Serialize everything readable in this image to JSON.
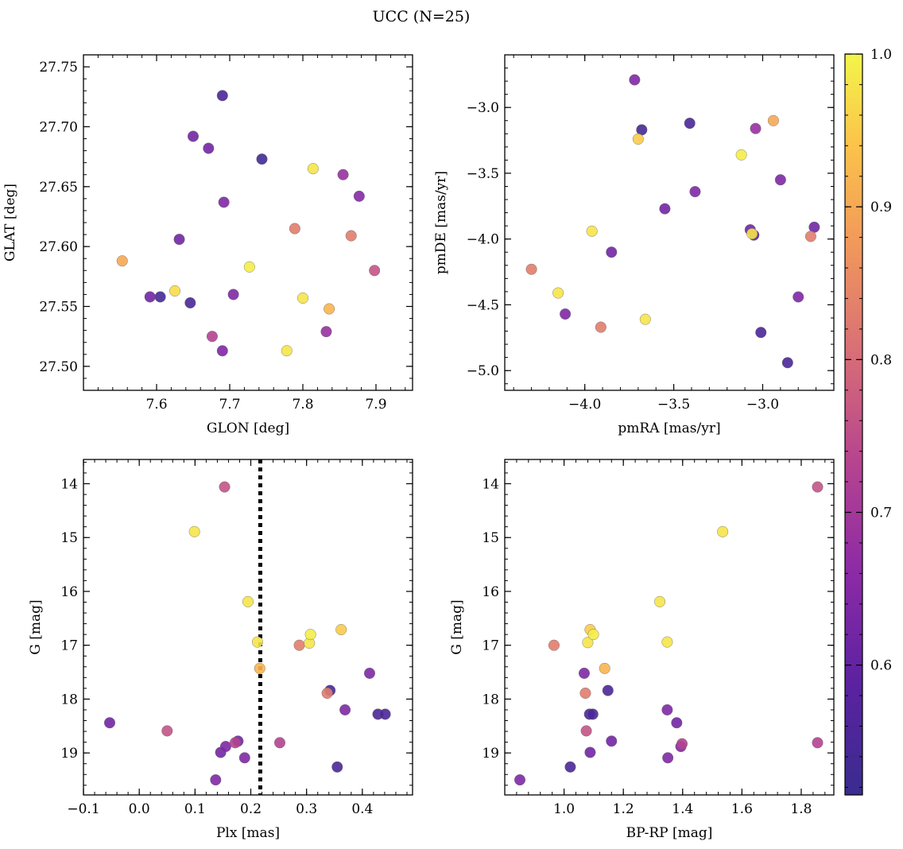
{
  "figure": {
    "title": "UCC (N=25)",
    "colorbar": {
      "colormap": "plasma",
      "range": [
        0.515,
        1.0
      ],
      "ticks": [
        0.6,
        0.7,
        0.8,
        0.9,
        1.0
      ],
      "tick_labels": [
        "0.6",
        "0.7",
        "0.8",
        "0.9",
        "1.0"
      ]
    }
  },
  "chart_data": [
    {
      "type": "scatter",
      "xlabel": "GLON [deg]",
      "ylabel": "GLAT [deg]",
      "xlim": [
        7.5,
        7.95
      ],
      "ylim": [
        27.48,
        27.76
      ],
      "y_inverted": false,
      "xticks": [
        7.6,
        7.7,
        7.8,
        7.9
      ],
      "xtick_labels": [
        "7.6",
        "7.7",
        "7.8",
        "7.9"
      ],
      "yticks": [
        27.5,
        27.55,
        27.6,
        27.65,
        27.7,
        27.75
      ],
      "ytick_labels": [
        "27.50",
        "27.55",
        "27.60",
        "27.65",
        "27.70",
        "27.75"
      ],
      "points": [
        {
          "x": 7.69,
          "y": 27.726,
          "c": 0.55
        },
        {
          "x": 7.65,
          "y": 27.692,
          "c": 0.62
        },
        {
          "x": 7.671,
          "y": 27.682,
          "c": 0.62
        },
        {
          "x": 7.744,
          "y": 27.673,
          "c": 0.53
        },
        {
          "x": 7.814,
          "y": 27.665,
          "c": 0.98
        },
        {
          "x": 7.855,
          "y": 27.66,
          "c": 0.68
        },
        {
          "x": 7.877,
          "y": 27.642,
          "c": 0.65
        },
        {
          "x": 7.692,
          "y": 27.637,
          "c": 0.64
        },
        {
          "x": 7.789,
          "y": 27.615,
          "c": 0.83
        },
        {
          "x": 7.866,
          "y": 27.609,
          "c": 0.83
        },
        {
          "x": 7.631,
          "y": 27.606,
          "c": 0.62
        },
        {
          "x": 7.553,
          "y": 27.588,
          "c": 0.9
        },
        {
          "x": 7.727,
          "y": 27.583,
          "c": 0.99
        },
        {
          "x": 7.898,
          "y": 27.58,
          "c": 0.76
        },
        {
          "x": 7.625,
          "y": 27.563,
          "c": 0.97
        },
        {
          "x": 7.705,
          "y": 27.56,
          "c": 0.64
        },
        {
          "x": 7.591,
          "y": 27.558,
          "c": 0.62
        },
        {
          "x": 7.605,
          "y": 27.558,
          "c": 0.54
        },
        {
          "x": 7.8,
          "y": 27.557,
          "c": 0.98
        },
        {
          "x": 7.646,
          "y": 27.553,
          "c": 0.55
        },
        {
          "x": 7.836,
          "y": 27.548,
          "c": 0.92
        },
        {
          "x": 7.832,
          "y": 27.529,
          "c": 0.68
        },
        {
          "x": 7.676,
          "y": 27.525,
          "c": 0.73
        },
        {
          "x": 7.69,
          "y": 27.513,
          "c": 0.64
        },
        {
          "x": 7.778,
          "y": 27.513,
          "c": 0.98
        }
      ]
    },
    {
      "type": "scatter",
      "xlabel": "pmRA [mas/yr]",
      "ylabel": "pmDE [mas/yr]",
      "xlim": [
        -4.45,
        -2.6
      ],
      "ylim": [
        -5.15,
        -2.6
      ],
      "y_inverted": false,
      "xticks": [
        -4.0,
        -3.5,
        -3.0
      ],
      "xtick_labels": [
        "−4.0",
        "−3.5",
        "−3.0"
      ],
      "yticks": [
        -5.0,
        -4.5,
        -4.0,
        -3.5,
        -3.0
      ],
      "ytick_labels": [
        "−5.0",
        "−4.5",
        "−4.0",
        "−3.5",
        "−3.0"
      ],
      "points": [
        {
          "x": -3.72,
          "y": -2.79,
          "c": 0.64
        },
        {
          "x": -3.68,
          "y": -3.17,
          "c": 0.54
        },
        {
          "x": -3.7,
          "y": -3.24,
          "c": 0.95
        },
        {
          "x": -3.41,
          "y": -3.12,
          "c": 0.55
        },
        {
          "x": -3.04,
          "y": -3.16,
          "c": 0.68
        },
        {
          "x": -2.94,
          "y": -3.1,
          "c": 0.9
        },
        {
          "x": -3.12,
          "y": -3.36,
          "c": 0.99
        },
        {
          "x": -2.9,
          "y": -3.55,
          "c": 0.64
        },
        {
          "x": -3.38,
          "y": -3.64,
          "c": 0.64
        },
        {
          "x": -3.55,
          "y": -3.77,
          "c": 0.62
        },
        {
          "x": -3.07,
          "y": -3.93,
          "c": 0.62
        },
        {
          "x": -3.06,
          "y": -3.96,
          "c": 0.98
        },
        {
          "x": -3.05,
          "y": -3.97,
          "c": 0.6
        },
        {
          "x": -2.71,
          "y": -3.91,
          "c": 0.62
        },
        {
          "x": -2.73,
          "y": -3.98,
          "c": 0.83
        },
        {
          "x": -3.96,
          "y": -3.94,
          "c": 0.98
        },
        {
          "x": -3.85,
          "y": -4.1,
          "c": 0.62
        },
        {
          "x": -4.3,
          "y": -4.23,
          "c": 0.83
        },
        {
          "x": -4.15,
          "y": -4.41,
          "c": 0.98
        },
        {
          "x": -4.11,
          "y": -4.57,
          "c": 0.64
        },
        {
          "x": -2.8,
          "y": -4.44,
          "c": 0.64
        },
        {
          "x": -3.66,
          "y": -4.61,
          "c": 0.98
        },
        {
          "x": -3.91,
          "y": -4.67,
          "c": 0.83
        },
        {
          "x": -3.01,
          "y": -4.71,
          "c": 0.55
        },
        {
          "x": -2.86,
          "y": -4.94,
          "c": 0.55
        }
      ]
    },
    {
      "type": "scatter",
      "xlabel": "Plx [mas]",
      "ylabel": "G [mag]",
      "xlim": [
        -0.1,
        0.49
      ],
      "ylim": [
        19.78,
        13.55
      ],
      "y_inverted": true,
      "vline": {
        "x": 0.217,
        "style": "dotted"
      },
      "xticks": [
        -0.1,
        0.0,
        0.1,
        0.2,
        0.3,
        0.4
      ],
      "xtick_labels": [
        "−0.1",
        "0.0",
        "0.1",
        "0.2",
        "0.3",
        "0.4"
      ],
      "yticks": [
        14,
        15,
        16,
        17,
        18,
        19
      ],
      "ytick_labels": [
        "14",
        "15",
        "16",
        "17",
        "18",
        "19"
      ],
      "points": [
        {
          "x": 0.153,
          "y": 14.06,
          "c": 0.76
        },
        {
          "x": 0.099,
          "y": 14.89,
          "c": 0.98
        },
        {
          "x": 0.195,
          "y": 16.19,
          "c": 0.98
        },
        {
          "x": 0.362,
          "y": 16.71,
          "c": 0.95
        },
        {
          "x": 0.307,
          "y": 16.8,
          "c": 0.99
        },
        {
          "x": 0.212,
          "y": 16.94,
          "c": 0.98
        },
        {
          "x": 0.305,
          "y": 16.96,
          "c": 0.98
        },
        {
          "x": 0.287,
          "y": 17.0,
          "c": 0.83
        },
        {
          "x": 0.216,
          "y": 17.43,
          "c": 0.92
        },
        {
          "x": 0.413,
          "y": 17.52,
          "c": 0.64
        },
        {
          "x": 0.342,
          "y": 17.84,
          "c": 0.55
        },
        {
          "x": 0.337,
          "y": 17.89,
          "c": 0.83
        },
        {
          "x": 0.369,
          "y": 18.2,
          "c": 0.64
        },
        {
          "x": 0.428,
          "y": 18.28,
          "c": 0.55
        },
        {
          "x": 0.441,
          "y": 18.28,
          "c": 0.55
        },
        {
          "x": -0.053,
          "y": 18.44,
          "c": 0.62
        },
        {
          "x": 0.05,
          "y": 18.59,
          "c": 0.76
        },
        {
          "x": 0.177,
          "y": 18.78,
          "c": 0.62
        },
        {
          "x": 0.172,
          "y": 18.81,
          "c": 0.73
        },
        {
          "x": 0.252,
          "y": 18.81,
          "c": 0.73
        },
        {
          "x": 0.155,
          "y": 18.88,
          "c": 0.64
        },
        {
          "x": 0.146,
          "y": 18.99,
          "c": 0.62
        },
        {
          "x": 0.189,
          "y": 19.09,
          "c": 0.64
        },
        {
          "x": 0.355,
          "y": 19.26,
          "c": 0.55
        },
        {
          "x": 0.137,
          "y": 19.5,
          "c": 0.64
        }
      ]
    },
    {
      "type": "scatter",
      "xlabel": "BP-RP [mag]",
      "ylabel": "G [mag]",
      "xlim": [
        0.8,
        1.91
      ],
      "ylim": [
        19.78,
        13.55
      ],
      "y_inverted": true,
      "xticks": [
        1.0,
        1.2,
        1.4,
        1.6,
        1.8
      ],
      "xtick_labels": [
        "1.0",
        "1.2",
        "1.4",
        "1.6",
        "1.8"
      ],
      "yticks": [
        14,
        15,
        16,
        17,
        18,
        19
      ],
      "ytick_labels": [
        "14",
        "15",
        "16",
        "17",
        "18",
        "19"
      ],
      "points": [
        {
          "x": 1.855,
          "y": 14.06,
          "c": 0.76
        },
        {
          "x": 1.535,
          "y": 14.89,
          "c": 0.98
        },
        {
          "x": 1.323,
          "y": 16.19,
          "c": 0.98
        },
        {
          "x": 1.088,
          "y": 16.71,
          "c": 0.95
        },
        {
          "x": 1.099,
          "y": 16.8,
          "c": 0.99
        },
        {
          "x": 1.08,
          "y": 16.95,
          "c": 0.98
        },
        {
          "x": 1.348,
          "y": 16.94,
          "c": 0.98
        },
        {
          "x": 0.966,
          "y": 17.0,
          "c": 0.83
        },
        {
          "x": 1.137,
          "y": 17.43,
          "c": 0.92
        },
        {
          "x": 1.068,
          "y": 17.52,
          "c": 0.64
        },
        {
          "x": 1.148,
          "y": 17.84,
          "c": 0.55
        },
        {
          "x": 1.072,
          "y": 17.89,
          "c": 0.83
        },
        {
          "x": 1.348,
          "y": 18.2,
          "c": 0.64
        },
        {
          "x": 1.086,
          "y": 18.28,
          "c": 0.55
        },
        {
          "x": 1.097,
          "y": 18.28,
          "c": 0.55
        },
        {
          "x": 1.38,
          "y": 18.44,
          "c": 0.62
        },
        {
          "x": 1.075,
          "y": 18.59,
          "c": 0.76
        },
        {
          "x": 1.16,
          "y": 18.78,
          "c": 0.62
        },
        {
          "x": 1.855,
          "y": 18.81,
          "c": 0.73
        },
        {
          "x": 1.398,
          "y": 18.83,
          "c": 0.73
        },
        {
          "x": 1.394,
          "y": 18.88,
          "c": 0.64
        },
        {
          "x": 1.088,
          "y": 18.99,
          "c": 0.62
        },
        {
          "x": 1.35,
          "y": 19.09,
          "c": 0.64
        },
        {
          "x": 1.021,
          "y": 19.26,
          "c": 0.55
        },
        {
          "x": 0.851,
          "y": 19.5,
          "c": 0.64
        }
      ]
    }
  ]
}
